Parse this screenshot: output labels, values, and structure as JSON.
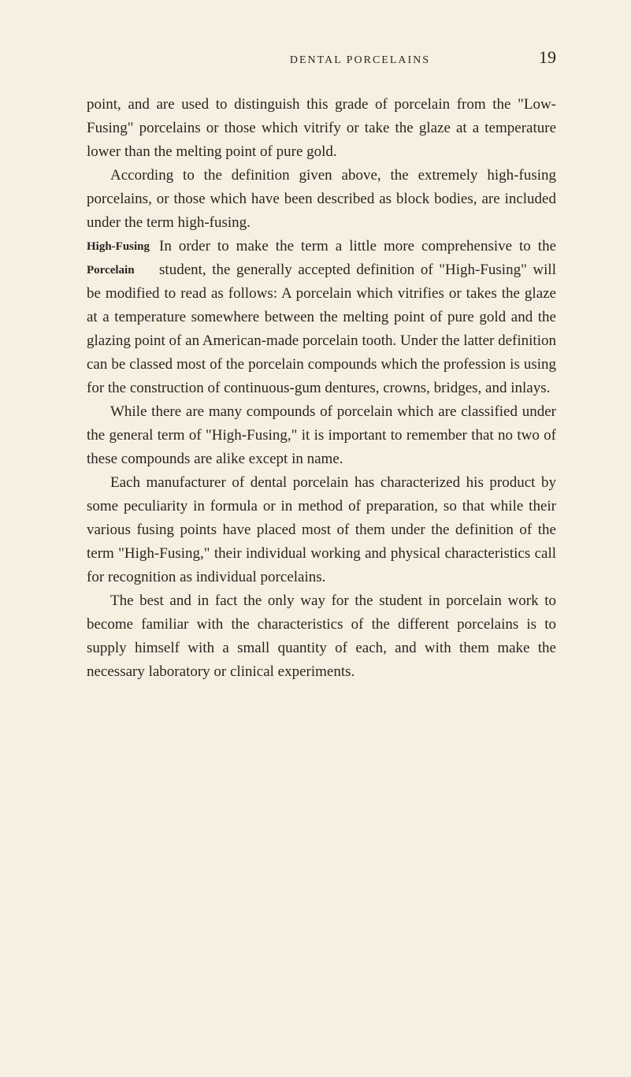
{
  "header": {
    "title": "DENTAL PORCELAINS",
    "page_number": "19"
  },
  "paragraphs": {
    "p1": "point, and are used to distinguish this grade of porcelain from the \"Low-Fusing\" porcelains or those which vitrify or take the glaze at a temperature lower than the melting point of pure gold.",
    "p2": "According to the definition given above, the extremely high-fusing porcelains, or those which have been described as block bodies, are included under the term high-fusing.",
    "margin_heading_line1": "High-Fusing",
    "margin_heading_line2": "Porcelain",
    "p3": "In order to make the term a little more comprehensive to the student, the generally accepted definition of \"High-Fusing\" will be modified to read as follows: A porcelain which vitrifies or takes the glaze at a temperature somewhere between the melting point of pure gold and the glazing point of an American-made porcelain tooth. Under the latter definition can be classed most of the porcelain compounds which the profession is using for the construction of continuous-gum dentures, crowns, bridges, and inlays.",
    "p4": "While there are many compounds of porcelain which are classified under the general term of \"High-Fusing,\" it is important to remember that no two of these compounds are alike except in name.",
    "p5": "Each manufacturer of dental porcelain has characterized his product by some peculiarity in formula or in method of preparation, so that while their various fusing points have placed most of them under the definition of the term \"High-Fusing,\" their individual working and physical characteristics call for recognition as individual porcelains.",
    "p6": "The best and in fact the only way for the student in porcelain work to become familiar with the characteristics of the different porcelains is to supply himself with a small quantity of each, and with them make the necessary laboratory or clinical experiments."
  },
  "styling": {
    "background_color": "#f5f0e1",
    "text_color": "#2a2520",
    "body_font_size": 19,
    "header_font_size": 14,
    "page_number_font_size": 22,
    "margin_heading_font_size": 15,
    "line_height": 1.58
  }
}
